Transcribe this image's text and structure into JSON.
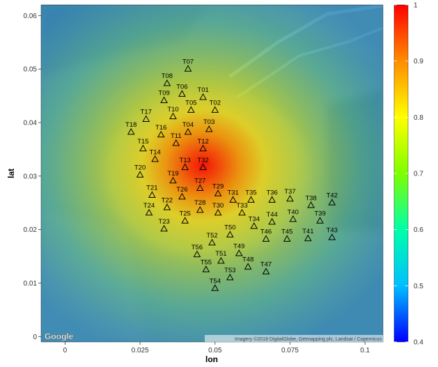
{
  "chart_data": {
    "type": "heatmap",
    "title": "",
    "xlabel": "lon",
    "ylabel": "lat",
    "xlim": [
      -0.008,
      0.106
    ],
    "ylim": [
      -0.001,
      0.062
    ],
    "xticks": [
      {
        "v": 0,
        "label": "0"
      },
      {
        "v": 0.025,
        "label": "0.025"
      },
      {
        "v": 0.05,
        "label": "0.05"
      },
      {
        "v": 0.075,
        "label": "0.075"
      },
      {
        "v": 0.1,
        "label": "0.1"
      }
    ],
    "yticks": [
      {
        "v": 0,
        "label": "0"
      },
      {
        "v": 0.01,
        "label": "0.01"
      },
      {
        "v": 0.02,
        "label": "0.02"
      },
      {
        "v": 0.03,
        "label": "0.03"
      },
      {
        "v": 0.04,
        "label": "0.04"
      },
      {
        "v": 0.05,
        "label": "0.05"
      },
      {
        "v": 0.06,
        "label": "0.06"
      }
    ],
    "field_peak": {
      "lon": 0.046,
      "lat": 0.032
    },
    "colorbar": {
      "min": 0.4,
      "max": 1,
      "ticks": [
        {
          "v": 1,
          "label": "1"
        },
        {
          "v": 0.9,
          "label": "0.9"
        },
        {
          "v": 0.8,
          "label": "0.8"
        },
        {
          "v": 0.7,
          "label": "0.7"
        },
        {
          "v": 0.6,
          "label": "0.6"
        },
        {
          "v": 0.5,
          "label": "0.5"
        },
        {
          "v": 0.4,
          "label": "0.4"
        }
      ],
      "colors": [
        "#0000ff",
        "#00bfff",
        "#00ffaa",
        "#7fff00",
        "#ffff00",
        "#ff8c00",
        "#ff0000"
      ]
    },
    "points": [
      {
        "label": "T01",
        "lon": 0.046,
        "lat": 0.0448
      },
      {
        "label": "T02",
        "lon": 0.05,
        "lat": 0.0424
      },
      {
        "label": "T03",
        "lon": 0.048,
        "lat": 0.0388
      },
      {
        "label": "T04",
        "lon": 0.041,
        "lat": 0.0383
      },
      {
        "label": "T05",
        "lon": 0.042,
        "lat": 0.0424
      },
      {
        "label": "T06",
        "lon": 0.039,
        "lat": 0.0454
      },
      {
        "label": "T07",
        "lon": 0.041,
        "lat": 0.0501
      },
      {
        "label": "T08",
        "lon": 0.034,
        "lat": 0.0474
      },
      {
        "label": "T09",
        "lon": 0.033,
        "lat": 0.0442
      },
      {
        "label": "T10",
        "lon": 0.036,
        "lat": 0.0412
      },
      {
        "label": "T11",
        "lon": 0.037,
        "lat": 0.0362
      },
      {
        "label": "T12",
        "lon": 0.046,
        "lat": 0.0352
      },
      {
        "label": "T13",
        "lon": 0.04,
        "lat": 0.0317
      },
      {
        "label": "T14",
        "lon": 0.03,
        "lat": 0.0332
      },
      {
        "label": "T15",
        "lon": 0.026,
        "lat": 0.0352
      },
      {
        "label": "T16",
        "lon": 0.032,
        "lat": 0.0378
      },
      {
        "label": "T17",
        "lon": 0.027,
        "lat": 0.0407
      },
      {
        "label": "T18",
        "lon": 0.022,
        "lat": 0.0383
      },
      {
        "label": "T19",
        "lon": 0.036,
        "lat": 0.0292
      },
      {
        "label": "T20",
        "lon": 0.025,
        "lat": 0.0303
      },
      {
        "label": "T21",
        "lon": 0.029,
        "lat": 0.0265
      },
      {
        "label": "T22",
        "lon": 0.034,
        "lat": 0.0242
      },
      {
        "label": "T23",
        "lon": 0.033,
        "lat": 0.0202
      },
      {
        "label": "T24",
        "lon": 0.028,
        "lat": 0.0232
      },
      {
        "label": "T25",
        "lon": 0.04,
        "lat": 0.0217
      },
      {
        "label": "T26",
        "lon": 0.039,
        "lat": 0.0262
      },
      {
        "label": "T27",
        "lon": 0.045,
        "lat": 0.0278
      },
      {
        "label": "T28",
        "lon": 0.045,
        "lat": 0.0237
      },
      {
        "label": "T29",
        "lon": 0.051,
        "lat": 0.0268
      },
      {
        "label": "T30",
        "lon": 0.051,
        "lat": 0.0232
      },
      {
        "label": "T31",
        "lon": 0.056,
        "lat": 0.0256
      },
      {
        "label": "T32",
        "lon": 0.046,
        "lat": 0.0317
      },
      {
        "label": "T33",
        "lon": 0.059,
        "lat": 0.0232
      },
      {
        "label": "T34",
        "lon": 0.063,
        "lat": 0.0207
      },
      {
        "label": "T35",
        "lon": 0.062,
        "lat": 0.0256
      },
      {
        "label": "T36",
        "lon": 0.069,
        "lat": 0.0256
      },
      {
        "label": "T37",
        "lon": 0.075,
        "lat": 0.0258
      },
      {
        "label": "T38",
        "lon": 0.082,
        "lat": 0.0246
      },
      {
        "label": "T39",
        "lon": 0.085,
        "lat": 0.0217
      },
      {
        "label": "T40",
        "lon": 0.076,
        "lat": 0.022
      },
      {
        "label": "T41",
        "lon": 0.081,
        "lat": 0.0184
      },
      {
        "label": "T42",
        "lon": 0.089,
        "lat": 0.0251
      },
      {
        "label": "T43",
        "lon": 0.089,
        "lat": 0.0186
      },
      {
        "label": "T44",
        "lon": 0.069,
        "lat": 0.0215
      },
      {
        "label": "T45",
        "lon": 0.074,
        "lat": 0.0183
      },
      {
        "label": "T46",
        "lon": 0.067,
        "lat": 0.0183
      },
      {
        "label": "T47",
        "lon": 0.067,
        "lat": 0.0122
      },
      {
        "label": "T48",
        "lon": 0.061,
        "lat": 0.0131
      },
      {
        "label": "T49",
        "lon": 0.058,
        "lat": 0.0156
      },
      {
        "label": "T50",
        "lon": 0.055,
        "lat": 0.0191
      },
      {
        "label": "T51",
        "lon": 0.052,
        "lat": 0.0142
      },
      {
        "label": "T52",
        "lon": 0.049,
        "lat": 0.0176
      },
      {
        "label": "T53",
        "lon": 0.055,
        "lat": 0.0111
      },
      {
        "label": "T54",
        "lon": 0.05,
        "lat": 0.0091
      },
      {
        "label": "T55",
        "lon": 0.047,
        "lat": 0.0126
      },
      {
        "label": "T56",
        "lon": 0.044,
        "lat": 0.0154
      }
    ],
    "grid": false,
    "legend_position": "right"
  },
  "map": {
    "logo_text": "Google",
    "attribution": "Imagery ©2018 DigitalGlobe, Getmapping plc, Landsat / Copernicus"
  }
}
